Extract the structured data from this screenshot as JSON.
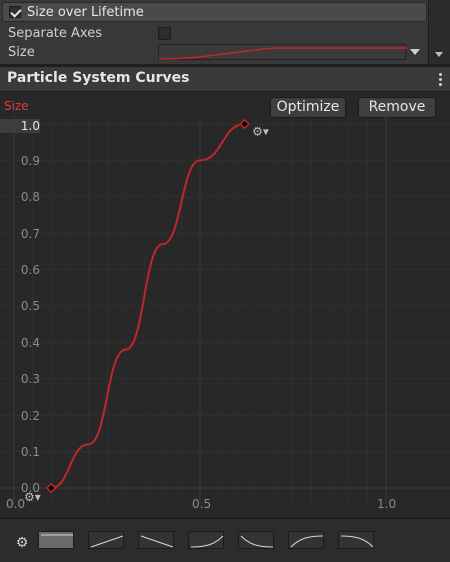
{
  "inspector": {
    "module_header": {
      "title": "Size over Lifetime",
      "enabled": true
    },
    "separate_axes": {
      "label": "Separate Axes",
      "checked": false
    },
    "size": {
      "label": "Size"
    }
  },
  "panel": {
    "title": "Particle System Curves"
  },
  "curve_editor": {
    "curve_name": "Size",
    "buttons": {
      "optimize": "Optimize",
      "remove": "Remove"
    },
    "y_ticks": [
      "1.0",
      "0.9",
      "0.8",
      "0.7",
      "0.6",
      "0.5",
      "0.4",
      "0.3",
      "0.2",
      "0.1",
      "0.0"
    ],
    "x_ticks": [
      "0.0",
      "0.5",
      "1.0"
    ]
  },
  "presets": {
    "count": 7,
    "selected_index": 0
  },
  "chart_data": {
    "type": "line",
    "xlim": [
      0,
      1
    ],
    "ylim": [
      0,
      1
    ],
    "grid": true,
    "series": [
      {
        "color": "#c0262c",
        "x": [
          0.1,
          0.2,
          0.3,
          0.4,
          0.5,
          0.62
        ],
        "y": [
          0.0,
          0.12,
          0.38,
          0.67,
          0.9,
          1.0
        ]
      }
    ]
  },
  "colors": {
    "curve": "#c0262c",
    "label_red": "#e23b3b",
    "background": "#282828"
  }
}
